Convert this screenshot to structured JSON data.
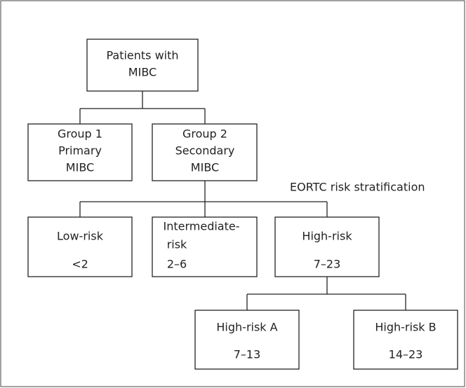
{
  "nodes": [
    {
      "lines": [
        "Patients with",
        "MIBC"
      ]
    },
    {
      "lines": [
        "Group 1",
        "Primary",
        "MIBC"
      ]
    },
    {
      "lines": [
        "Group 2",
        "Secondary",
        "MIBC"
      ]
    },
    {
      "lines": [
        "Low-risk",
        "<2"
      ]
    },
    {
      "lines": [
        "Intermediate-",
        "risk",
        "2–6"
      ]
    },
    {
      "lines": [
        "High-risk",
        "7–23"
      ]
    },
    {
      "lines": [
        "High-risk A",
        "7–13"
      ]
    },
    {
      "lines": [
        "High-risk B",
        "14–23"
      ]
    }
  ],
  "annotation": "EORTC risk stratification"
}
